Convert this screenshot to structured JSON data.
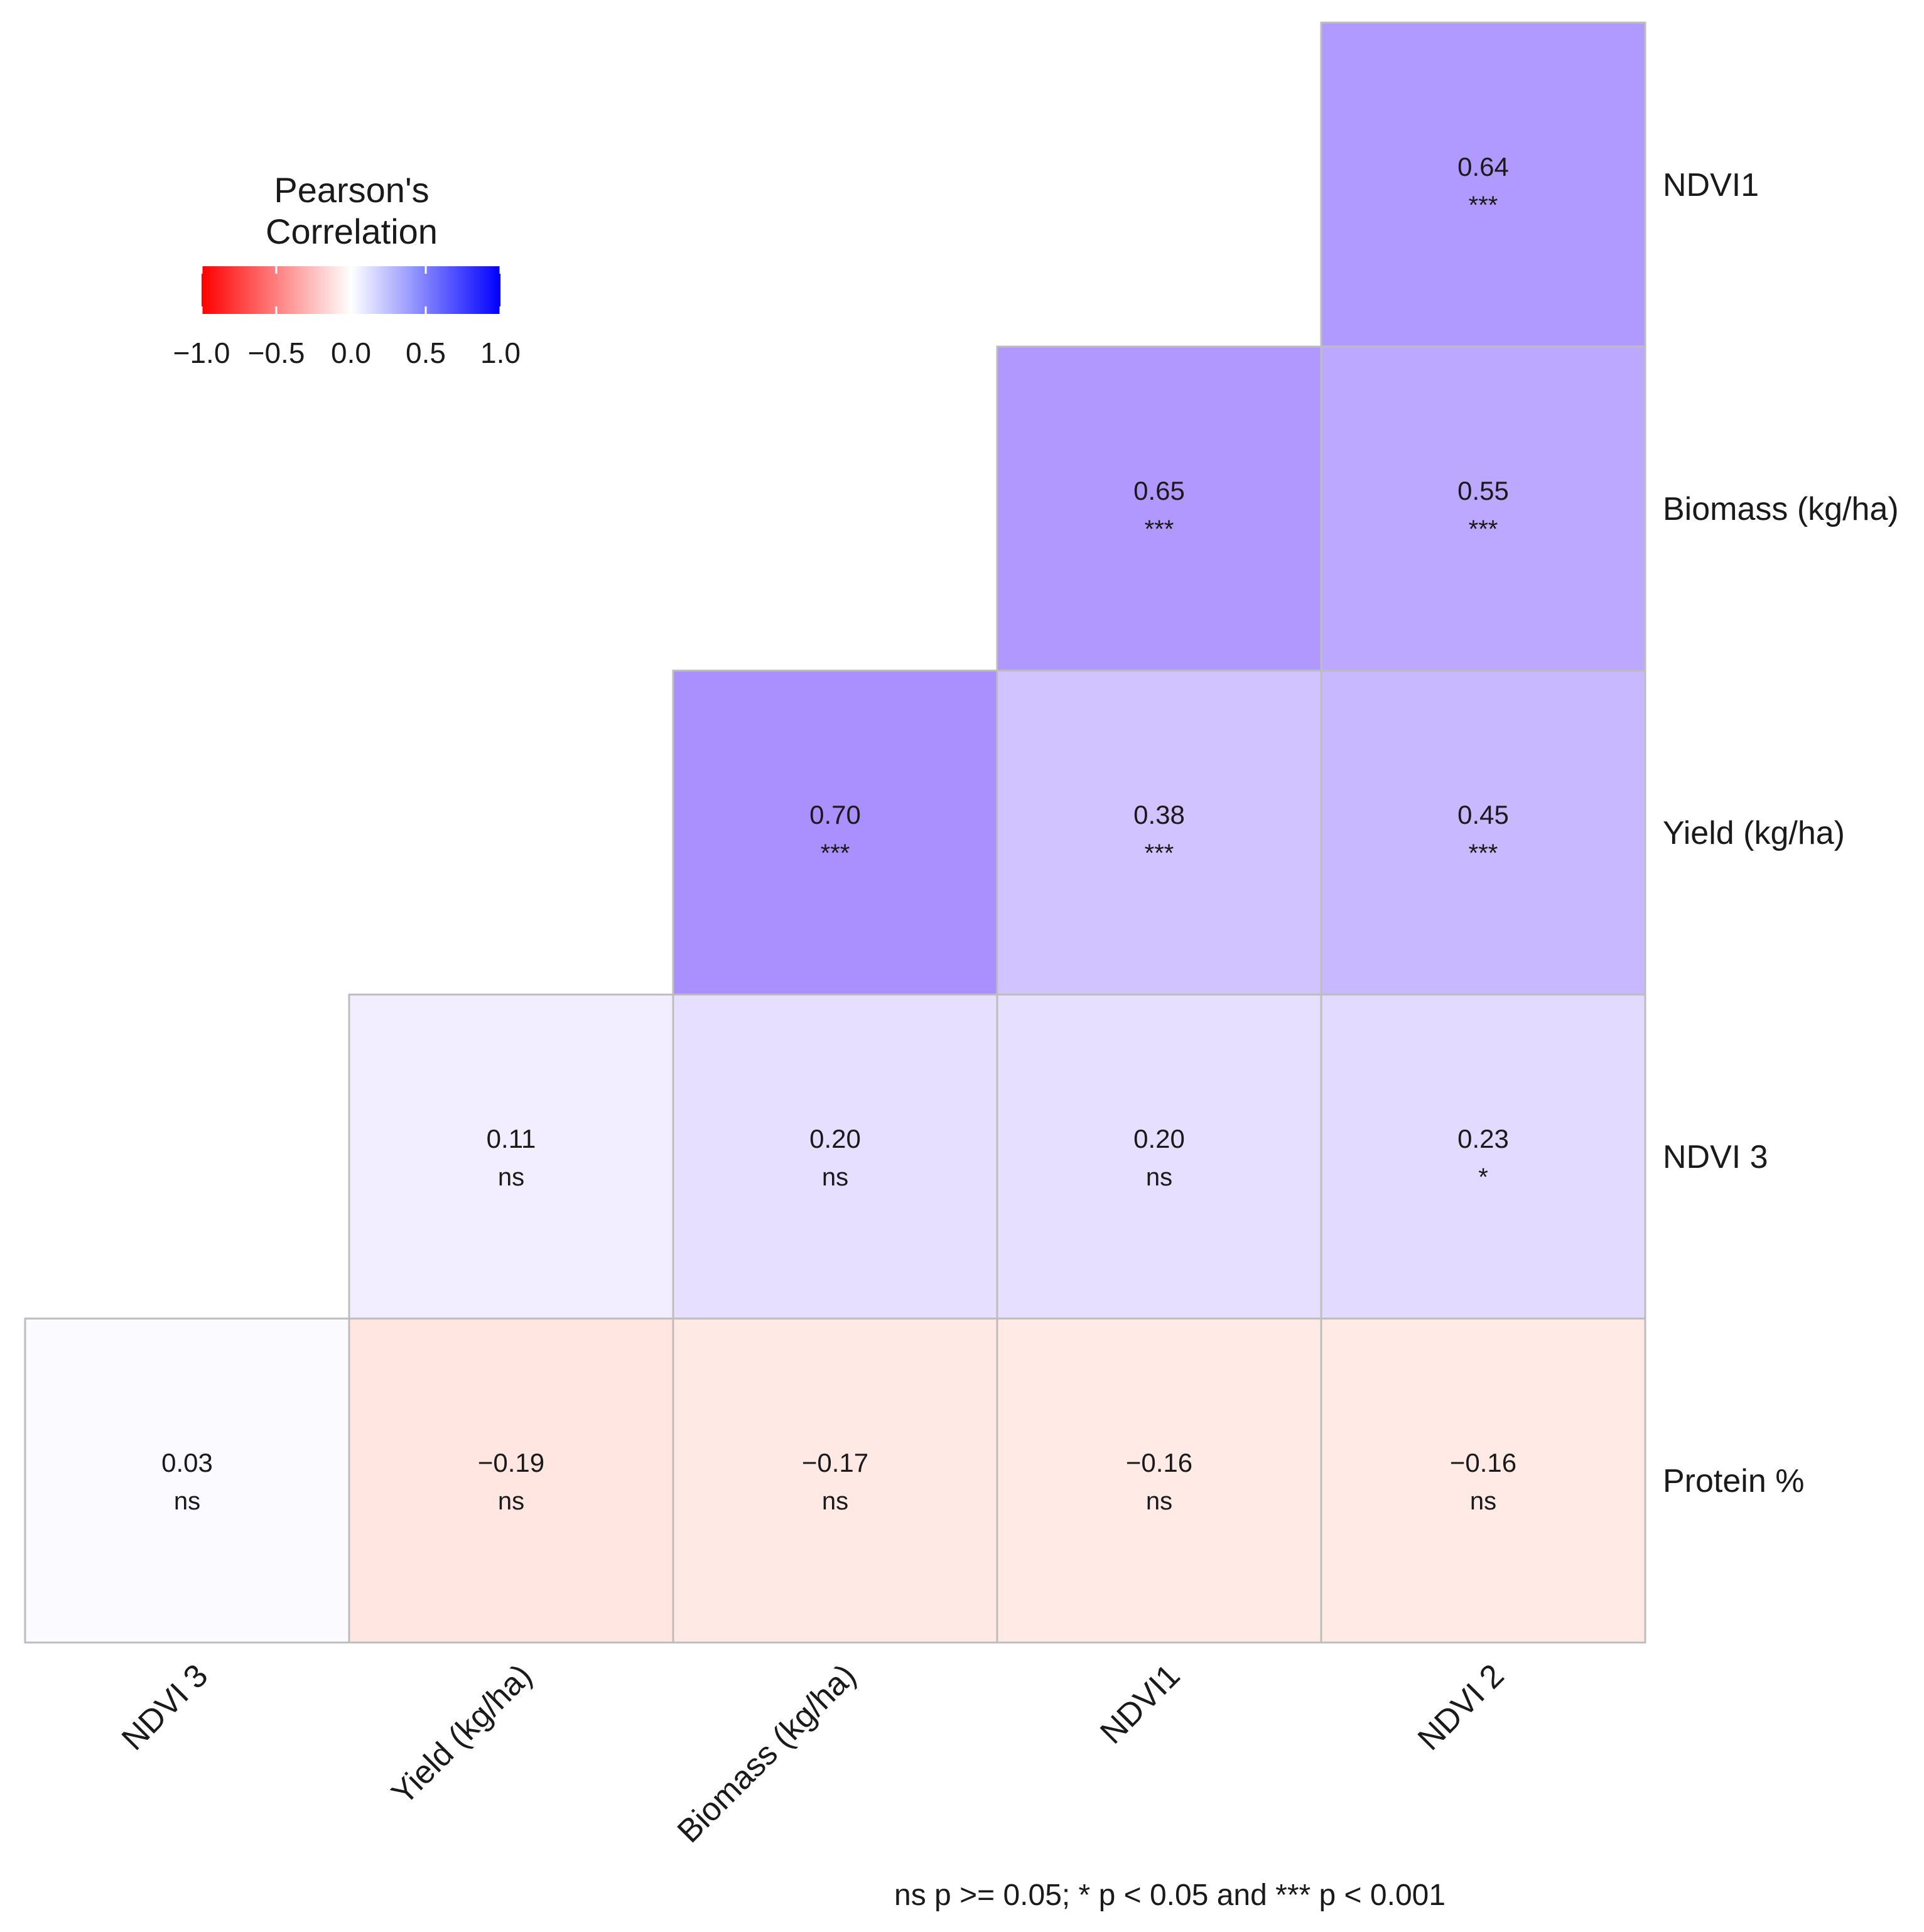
{
  "chart_data": {
    "type": "heatmap",
    "rows": [
      "NDVI1",
      "Biomass (kg/ha)",
      "Yield (kg/ha)",
      "NDVI 3",
      "Protein %"
    ],
    "columns": [
      "NDVI 3",
      "Yield (kg/ha)",
      "Biomass (kg/ha)",
      "NDVI1",
      "NDVI 2"
    ],
    "cells": [
      {
        "row": 0,
        "col": 4,
        "value": 0.64,
        "label": "0.64",
        "sig": "***"
      },
      {
        "row": 1,
        "col": 3,
        "value": 0.65,
        "label": "0.65",
        "sig": "***"
      },
      {
        "row": 1,
        "col": 4,
        "value": 0.55,
        "label": "0.55",
        "sig": "***"
      },
      {
        "row": 2,
        "col": 2,
        "value": 0.7,
        "label": "0.70",
        "sig": "***"
      },
      {
        "row": 2,
        "col": 3,
        "value": 0.38,
        "label": "0.38",
        "sig": "***"
      },
      {
        "row": 2,
        "col": 4,
        "value": 0.45,
        "label": "0.45",
        "sig": "***"
      },
      {
        "row": 3,
        "col": 1,
        "value": 0.11,
        "label": "0.11",
        "sig": "ns"
      },
      {
        "row": 3,
        "col": 2,
        "value": 0.2,
        "label": "0.20",
        "sig": "ns"
      },
      {
        "row": 3,
        "col": 3,
        "value": 0.2,
        "label": "0.20",
        "sig": "ns"
      },
      {
        "row": 3,
        "col": 4,
        "value": 0.23,
        "label": "0.23",
        "sig": "*"
      },
      {
        "row": 4,
        "col": 0,
        "value": 0.03,
        "label": "0.03",
        "sig": "ns"
      },
      {
        "row": 4,
        "col": 1,
        "value": -0.19,
        "label": "−0.19",
        "sig": "ns"
      },
      {
        "row": 4,
        "col": 2,
        "value": -0.17,
        "label": "−0.17",
        "sig": "ns"
      },
      {
        "row": 4,
        "col": 3,
        "value": -0.16,
        "label": "−0.16",
        "sig": "ns"
      },
      {
        "row": 4,
        "col": 4,
        "value": -0.16,
        "label": "−0.16",
        "sig": "ns"
      }
    ],
    "legend": {
      "title_line1": "Pearson's",
      "title_line2": "Correlation",
      "ticks": [
        "−1.0",
        "−0.5",
        "0.0",
        "0.5",
        "1.0"
      ],
      "range": [
        -1,
        1
      ],
      "placement": "top-left"
    },
    "colors": {
      "low": "#ff0000",
      "mid": "#ffffff",
      "high": "#0000ff",
      "grid": "#bdbdbd"
    },
    "footnote": "ns p >= 0.05; * p < 0.05 and *** p < 0.001"
  }
}
